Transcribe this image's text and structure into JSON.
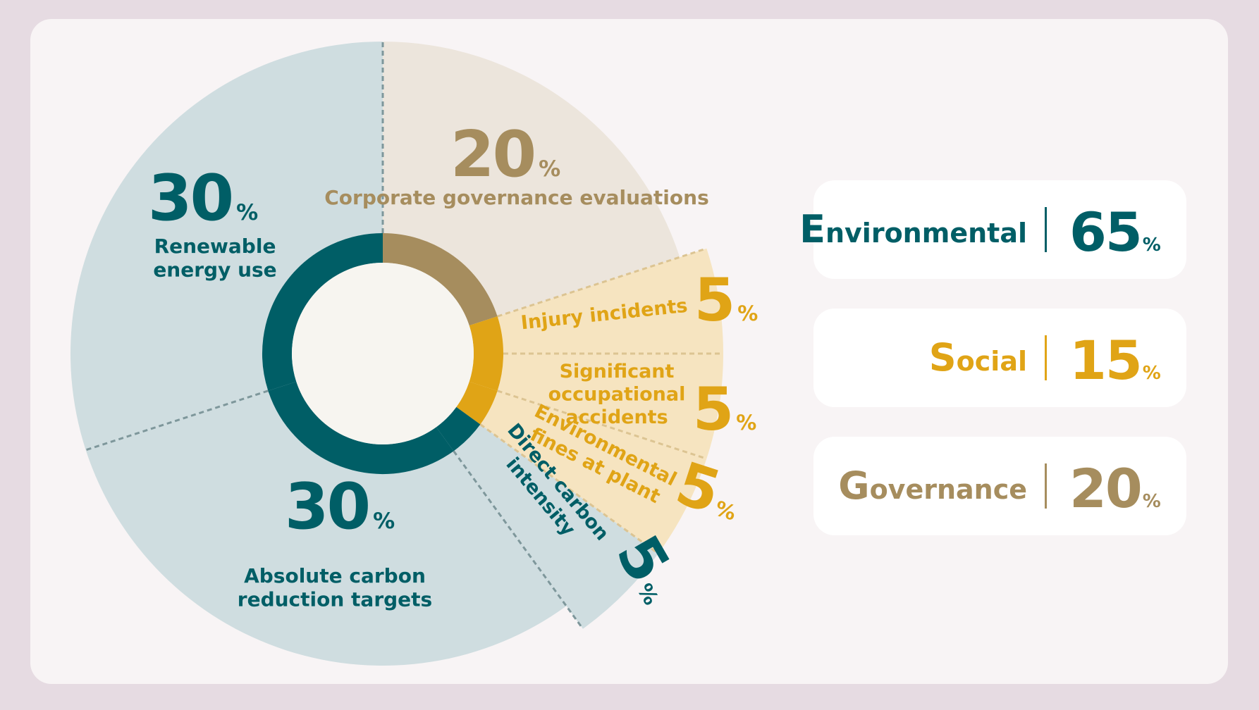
{
  "colors": {
    "environmental": "#005e66",
    "social": "#e0a416",
    "governance": "#a68d5e"
  },
  "chart_data": {
    "type": "pie",
    "unit": "%",
    "slices": [
      {
        "label": "Corporate governance evaluations",
        "value": 20,
        "category": "governance"
      },
      {
        "label": "Injury incidents",
        "value": 5,
        "category": "social"
      },
      {
        "label": "Significant occupational accidents",
        "value": 5,
        "category": "social"
      },
      {
        "label": "Environmental fines at plant sites",
        "value": 5,
        "category": "social"
      },
      {
        "label": "Direct carbon intensity",
        "value": 5,
        "category": "environmental"
      },
      {
        "label": "Absolute carbon reduction targets",
        "value": 30,
        "category": "environmental"
      },
      {
        "label": "Renewable energy use",
        "value": 30,
        "category": "environmental"
      }
    ],
    "summary": [
      {
        "name": "Environmental",
        "value": 65,
        "category": "environmental"
      },
      {
        "name": "Social",
        "value": 15,
        "category": "social"
      },
      {
        "name": "Governance",
        "value": 20,
        "category": "governance"
      }
    ]
  }
}
